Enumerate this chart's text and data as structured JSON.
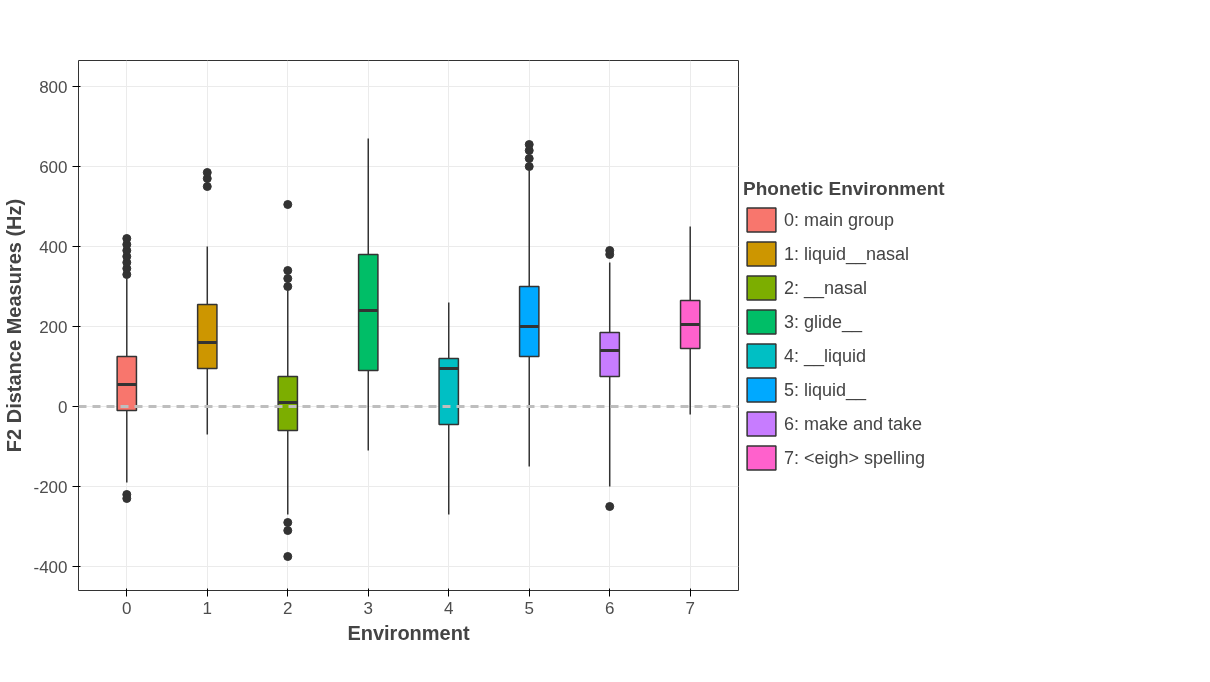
{
  "chart_data": {
    "type": "box",
    "xlabel": "Environment",
    "ylabel": "F2 Distance Measures (Hz)",
    "legend_title": "Phonetic Environment",
    "legend": "right",
    "grid": true,
    "categories": [
      "0",
      "1",
      "2",
      "3",
      "4",
      "5",
      "6",
      "7"
    ],
    "ylim": [
      -460,
      865
    ],
    "yticks": [
      -400,
      -200,
      0,
      200,
      400,
      600,
      800
    ],
    "ref_lines": [
      {
        "axis": "y",
        "value": 0,
        "color": "#bebebe",
        "line_style": "dashed"
      }
    ],
    "series": [
      {
        "name": "0: main group",
        "color": "#f8766d",
        "x": [
          "0"
        ],
        "boxes": [
          {
            "low": -190,
            "q1": -10,
            "median": 55,
            "q3": 125,
            "high": 320,
            "outliers": [
              330,
              345,
              360,
              375,
              390,
              405,
              420,
              -220,
              -230
            ]
          }
        ]
      },
      {
        "name": "1: liquid__nasal",
        "color": "#cd9600",
        "x": [
          "1"
        ],
        "boxes": [
          {
            "low": -70,
            "q1": 95,
            "median": 160,
            "q3": 255,
            "high": 400,
            "outliers": [
              550,
              570,
              585
            ]
          }
        ]
      },
      {
        "name": "2: __nasal",
        "color": "#7cae00",
        "x": [
          "2"
        ],
        "boxes": [
          {
            "low": -270,
            "q1": -60,
            "median": 10,
            "q3": 75,
            "high": 290,
            "outliers": [
              300,
              320,
              340,
              505,
              -290,
              -310,
              -375
            ]
          }
        ]
      },
      {
        "name": "3: glide__",
        "color": "#00be67",
        "x": [
          "3"
        ],
        "boxes": [
          {
            "low": -110,
            "q1": 90,
            "median": 240,
            "q3": 380,
            "high": 670
          }
        ]
      },
      {
        "name": "4: __liquid",
        "color": "#00bfc4",
        "x": [
          "4"
        ],
        "boxes": [
          {
            "low": -270,
            "q1": -45,
            "median": 95,
            "q3": 120,
            "high": 260
          }
        ]
      },
      {
        "name": "5: liquid__",
        "color": "#00a9ff",
        "x": [
          "5"
        ],
        "boxes": [
          {
            "low": -150,
            "q1": 125,
            "median": 200,
            "q3": 300,
            "high": 590,
            "outliers": [
              600,
              620,
              640,
              655
            ]
          }
        ]
      },
      {
        "name": "6: make and take",
        "color": "#c77cff",
        "x": [
          "6"
        ],
        "boxes": [
          {
            "low": -200,
            "q1": 75,
            "median": 140,
            "q3": 185,
            "high": 360,
            "outliers": [
              380,
              390,
              -250
            ]
          }
        ]
      },
      {
        "name": "7: <eigh> spelling",
        "color": "#ff61cc",
        "x": [
          "7"
        ],
        "boxes": [
          {
            "low": -20,
            "q1": 145,
            "median": 205,
            "q3": 265,
            "high": 450
          }
        ]
      }
    ]
  }
}
